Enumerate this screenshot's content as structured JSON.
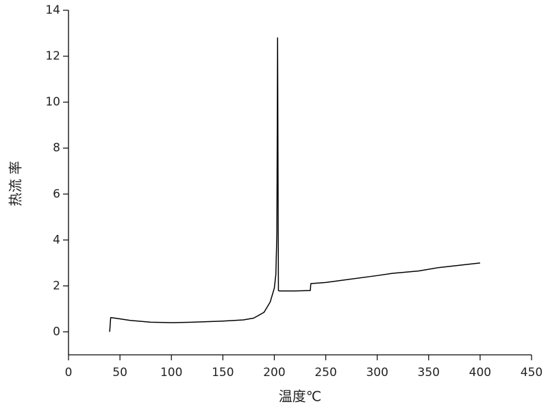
{
  "chart_data": {
    "type": "line",
    "x_label": "温度℃",
    "y_label": "热流 率",
    "x": [
      40,
      41,
      45,
      60,
      80,
      100,
      120,
      150,
      170,
      180,
      190,
      196,
      200,
      201.5,
      202.5,
      203.2,
      204,
      205,
      220,
      235,
      235.5,
      250,
      300,
      315,
      340,
      360,
      380,
      400
    ],
    "values": [
      0.0,
      0.62,
      0.6,
      0.5,
      0.42,
      0.4,
      0.42,
      0.47,
      0.52,
      0.6,
      0.85,
      1.3,
      1.9,
      2.5,
      4.3,
      12.8,
      1.8,
      1.78,
      1.78,
      1.8,
      2.1,
      2.15,
      2.45,
      2.55,
      2.65,
      2.8,
      2.9,
      3.0
    ],
    "color": "#000000",
    "xlim": [
      0,
      450
    ],
    "xticks": [
      0,
      50,
      100,
      150,
      200,
      250,
      300,
      350,
      400,
      450
    ],
    "ylim": [
      -1,
      14
    ],
    "yticks": [
      0,
      2,
      4,
      6,
      8,
      10,
      12,
      14
    ],
    "grid": false
  }
}
